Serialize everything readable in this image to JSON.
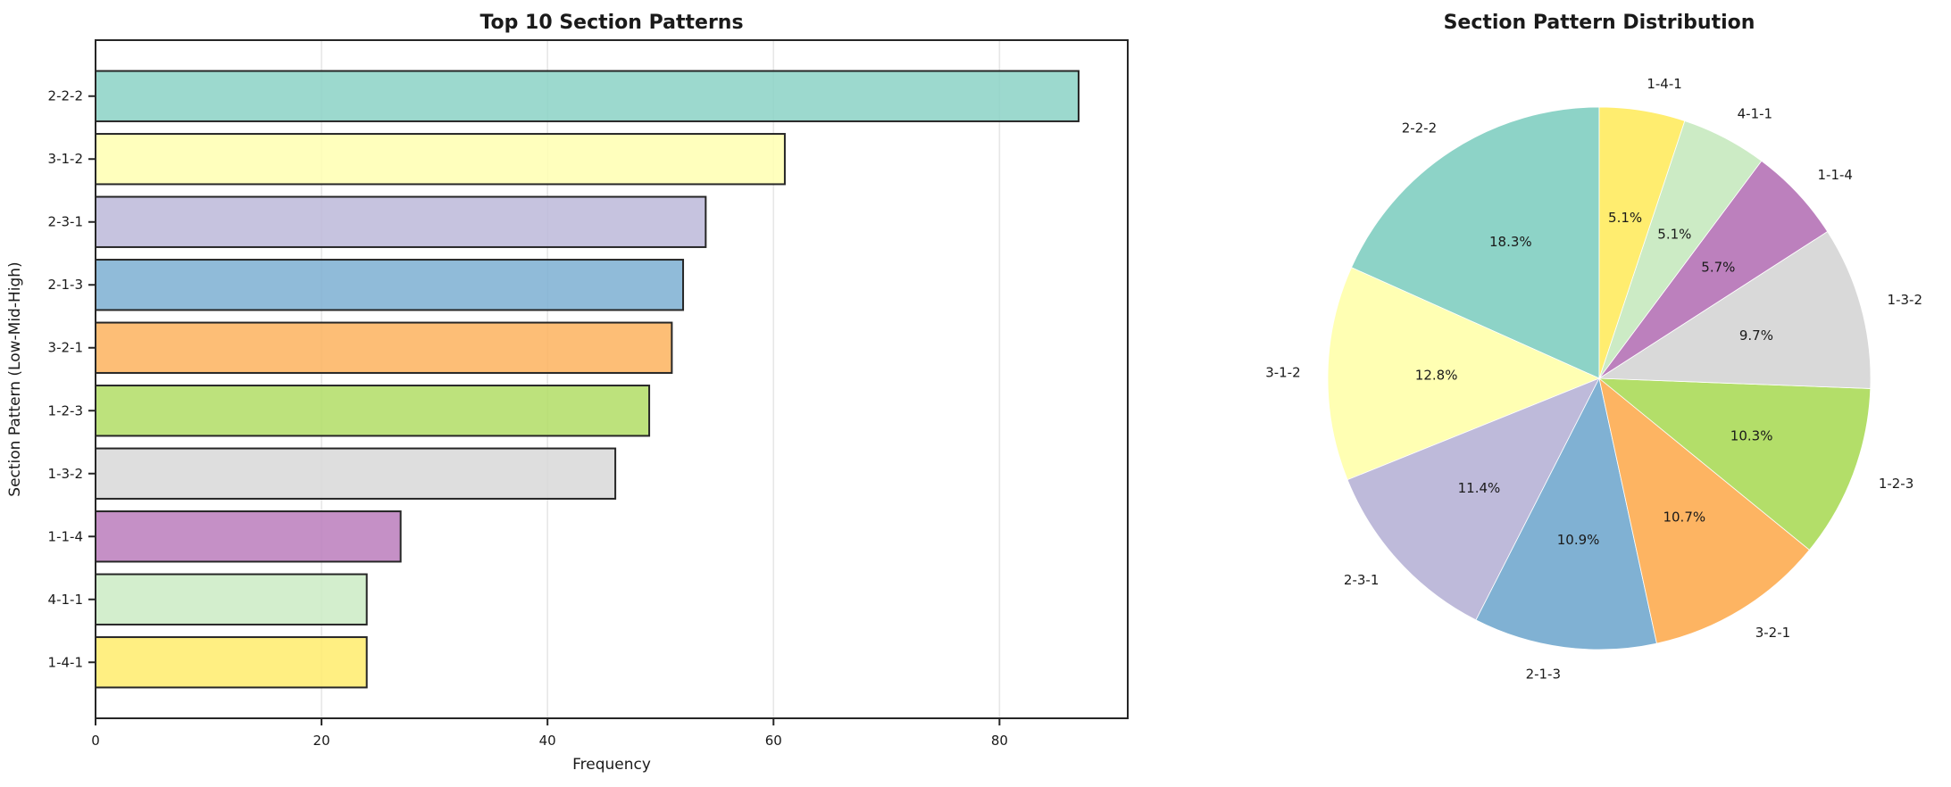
{
  "figure": {
    "background": "#ffffff",
    "text_color": "#1a1a1a"
  },
  "chart_data": [
    {
      "type": "bar",
      "orientation": "horizontal",
      "title": "Top 10 Section Patterns",
      "xlabel": "Frequency",
      "ylabel": "Section Pattern (Low-Mid-High)",
      "categories": [
        "2-2-2",
        "3-1-2",
        "2-3-1",
        "2-1-3",
        "3-2-1",
        "1-2-3",
        "1-3-2",
        "1-1-4",
        "4-1-1",
        "1-4-1"
      ],
      "values": [
        87,
        61,
        54,
        52,
        51,
        49,
        46,
        27,
        24,
        24
      ],
      "xticks": [
        0,
        20,
        40,
        60,
        80
      ],
      "xlim": [
        0,
        91.35
      ],
      "grid": true,
      "grid_color": "#e7e7e7",
      "bar_colors": [
        "#8dd3c7",
        "#ffffb3",
        "#bebada",
        "#80b1d3",
        "#fdb462",
        "#b3de69",
        "#d9d9d9",
        "#bc80bd",
        "#ccebc5",
        "#ffed6f"
      ],
      "bar_edge_color": "#262626",
      "bar_alpha": 0.87,
      "legend": "none"
    },
    {
      "type": "pie",
      "title": "Section Pattern Distribution",
      "labels": [
        "2-2-2",
        "3-1-2",
        "2-3-1",
        "2-1-3",
        "3-2-1",
        "1-2-3",
        "1-3-2",
        "1-1-4",
        "4-1-1",
        "1-4-1"
      ],
      "percentages": [
        18.3,
        12.8,
        11.4,
        10.9,
        10.7,
        10.3,
        9.7,
        5.7,
        5.1,
        5.1
      ],
      "percentage_labels": [
        "18.3%",
        "12.8%",
        "11.4%",
        "10.9%",
        "10.7%",
        "10.3%",
        "9.7%",
        "5.7%",
        "5.1%",
        "5.1%"
      ],
      "colors": [
        "#8dd3c7",
        "#ffffb3",
        "#bebada",
        "#80b1d3",
        "#fdb462",
        "#b3de69",
        "#d9d9d9",
        "#bc80bd",
        "#ccebc5",
        "#ffed6f"
      ],
      "start_angle": 90,
      "direction": "counterclockwise",
      "legend": "none"
    }
  ]
}
